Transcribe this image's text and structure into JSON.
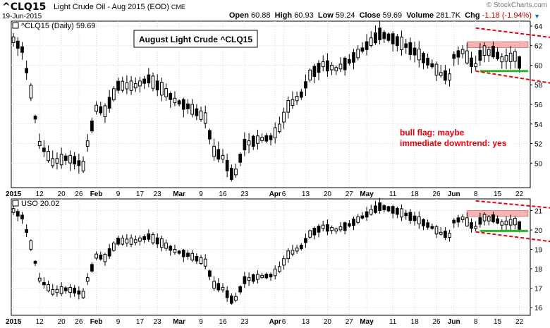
{
  "header": {
    "symbol": "^CLQ15",
    "description": "Light Crude Oil - Aug 2015 (EOD)",
    "exchange": "CME",
    "date": "19-Jun-2015",
    "credit": "© StockCharts.com",
    "open_label": "Open",
    "open": "60.88",
    "high_label": "High",
    "high": "60.93",
    "low_label": "Low",
    "low": "59.24",
    "close_label": "Close",
    "close": "59.69",
    "volume_label": "Volume",
    "volume": "281.7K",
    "chg_label": "Chg",
    "chg": "-1.18 (-1.94%)"
  },
  "chart_data": [
    {
      "type": "candlestick",
      "legend": "^CLQ15 (Daily) 59.69",
      "title": "August Light Crude ^CLQ15",
      "ylim": [
        47.5,
        64.5
      ],
      "yticks": [
        50,
        52,
        54,
        56,
        58,
        60,
        62,
        64
      ],
      "annotation_lines": [
        "bull flag: maybe",
        "immediate downtrend: yes"
      ],
      "resistance_zone": [
        61.8,
        62.4
      ],
      "support_line": 59.4,
      "channel_upper": [
        [
          106,
          63.8
        ],
        [
          151,
          61.3
        ]
      ],
      "channel_lower": [
        [
          106,
          59.4
        ],
        [
          151,
          56.2
        ]
      ],
      "colors": {
        "zone": "#f4a6a6",
        "support": "#2bb52b",
        "channel": "#e8000b",
        "annotation": "#e8000b"
      }
    },
    {
      "type": "candlestick",
      "legend": "USO 20.02",
      "ylim": [
        15.6,
        21.6
      ],
      "yticks": [
        16,
        17,
        18,
        19,
        20,
        21
      ],
      "resistance_zone": [
        20.7,
        21.0
      ],
      "support_line": 19.95,
      "channel_upper": [
        [
          106,
          21.5
        ],
        [
          151,
          20.55
        ]
      ],
      "channel_lower": [
        [
          106,
          19.9
        ],
        [
          151,
          18.6
        ]
      ],
      "colors": {
        "zone": "#f4a6a6",
        "support": "#2bb52b",
        "channel": "#e8000b"
      }
    }
  ],
  "x_axis": {
    "labels": [
      {
        "t": "2015",
        "d": 0,
        "bold": true
      },
      {
        "t": "12",
        "d": 6
      },
      {
        "t": "20",
        "d": 11
      },
      {
        "t": "26",
        "d": 15
      },
      {
        "t": "Feb",
        "d": 19,
        "bold": true
      },
      {
        "t": "9",
        "d": 24
      },
      {
        "t": "17",
        "d": 29
      },
      {
        "t": "23",
        "d": 33
      },
      {
        "t": "Mar",
        "d": 38,
        "bold": true
      },
      {
        "t": "9",
        "d": 43
      },
      {
        "t": "16",
        "d": 48
      },
      {
        "t": "23",
        "d": 53
      },
      {
        "t": "Apr",
        "d": 60,
        "bold": true
      },
      {
        "t": "6",
        "d": 62
      },
      {
        "t": "13",
        "d": 67
      },
      {
        "t": "20",
        "d": 72
      },
      {
        "t": "27",
        "d": 77
      },
      {
        "t": "May",
        "d": 81,
        "bold": true
      },
      {
        "t": "11",
        "d": 87
      },
      {
        "t": "18",
        "d": 92
      },
      {
        "t": "26",
        "d": 97
      },
      {
        "t": "Jun",
        "d": 101,
        "bold": true
      },
      {
        "t": "8",
        "d": 106
      },
      {
        "t": "15",
        "d": 111
      },
      {
        "t": "22",
        "d": 116
      }
    ]
  },
  "trend_anchors": [
    [
      0,
      62.6
    ],
    [
      2,
      61.6
    ],
    [
      4,
      57.3
    ],
    [
      6,
      52.0
    ],
    [
      9,
      50.1
    ],
    [
      12,
      50.5
    ],
    [
      14,
      50.3
    ],
    [
      16,
      49.7
    ],
    [
      17,
      52.0
    ],
    [
      19,
      55.6
    ],
    [
      21,
      55.3
    ],
    [
      24,
      57.9
    ],
    [
      28,
      57.9
    ],
    [
      31,
      58.6
    ],
    [
      34,
      57.6
    ],
    [
      37,
      56.4
    ],
    [
      40,
      55.8
    ],
    [
      44,
      54.6
    ],
    [
      46,
      51.2
    ],
    [
      48,
      50.6
    ],
    [
      50,
      48.9
    ],
    [
      51,
      49.1
    ],
    [
      53,
      51.9
    ],
    [
      56,
      52.4
    ],
    [
      59,
      52.6
    ],
    [
      61,
      53.6
    ],
    [
      63,
      55.8
    ],
    [
      66,
      57.0
    ],
    [
      68,
      59.0
    ],
    [
      71,
      60.1
    ],
    [
      74,
      59.6
    ],
    [
      77,
      60.4
    ],
    [
      80,
      61.6
    ],
    [
      84,
      63.2
    ],
    [
      87,
      62.7
    ],
    [
      90,
      62.0
    ],
    [
      93,
      61.1
    ],
    [
      96,
      60.0
    ],
    [
      98,
      59.1
    ],
    [
      100,
      58.8
    ],
    [
      101,
      60.9
    ],
    [
      103,
      61.4
    ],
    [
      105,
      60.3
    ],
    [
      106,
      60.0
    ],
    [
      107,
      61.0
    ],
    [
      108,
      61.5
    ],
    [
      109,
      61.3
    ],
    [
      110,
      61.4
    ],
    [
      112,
      60.6
    ],
    [
      113,
      60.7
    ],
    [
      115,
      60.9
    ],
    [
      116,
      59.7
    ]
  ]
}
